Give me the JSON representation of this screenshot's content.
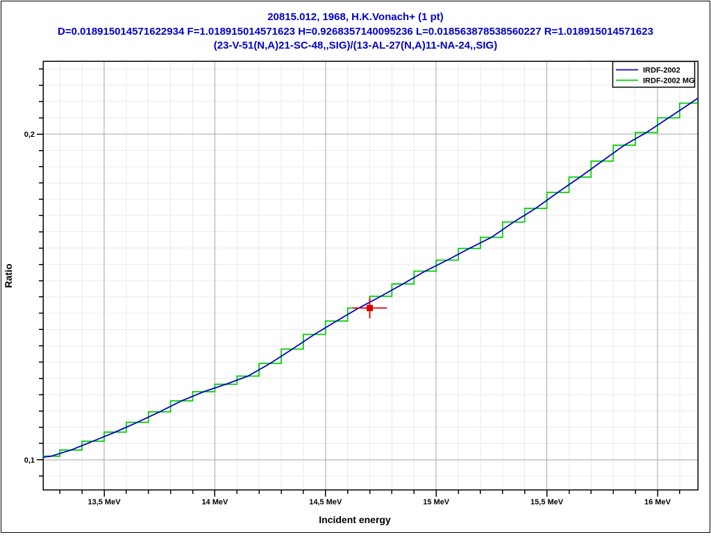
{
  "header": {
    "line1": "20815.012, 1968, H.K.Vonach+ (1 pt)",
    "line2": "D=0.018915014571622934 F=1.018915014571623 H=0.9268357140095236 L=0.018563878538560227 R=1.018915014571623",
    "line3": "(23-V-51(N,A)21-SC-48,,SIG)/(13-AL-27(N,A)11-NA-24,,SIG)",
    "color": "#0000CC"
  },
  "chart_data": {
    "type": "line",
    "xlabel": "Incident energy",
    "ylabel": "Ratio",
    "xlim": [
      13.224,
      16.182
    ],
    "ylim": [
      0.0908,
      0.2224
    ],
    "x_major_ticks": [
      13.5,
      14.0,
      14.5,
      15.0,
      15.5,
      16.0
    ],
    "x_major_tick_labels": [
      "13,5 MeV",
      "14 MeV",
      "14,5 MeV",
      "15 MeV",
      "15,5 MeV",
      "16 MeV"
    ],
    "x_minor_step": 0.1,
    "y_major_ticks": [
      0.1,
      0.2
    ],
    "y_major_tick_labels": [
      "0,1",
      "0,2"
    ],
    "y_minor_step": 0.005,
    "grid": true,
    "grid_minor_color": "#E9E9E9",
    "grid_major_color": "#A6A6A6",
    "axis_color": "#000000",
    "legend_position": "top-right",
    "series": [
      {
        "name": "IRDF-2002",
        "type": "line",
        "color": "#0000CC",
        "points": [
          [
            13.224,
            0.1008
          ],
          [
            13.26,
            0.1011
          ],
          [
            13.35,
            0.103
          ],
          [
            13.45,
            0.1057
          ],
          [
            13.55,
            0.1085
          ],
          [
            13.65,
            0.1115
          ],
          [
            13.75,
            0.1147
          ],
          [
            13.85,
            0.1181
          ],
          [
            13.95,
            0.1209
          ],
          [
            14.05,
            0.1232
          ],
          [
            14.15,
            0.1257
          ],
          [
            14.25,
            0.1296
          ],
          [
            14.35,
            0.134
          ],
          [
            14.45,
            0.1385
          ],
          [
            14.55,
            0.1426
          ],
          [
            14.65,
            0.1466
          ],
          [
            14.75,
            0.1502
          ],
          [
            14.85,
            0.154
          ],
          [
            14.95,
            0.1579
          ],
          [
            15.05,
            0.1613
          ],
          [
            15.15,
            0.1649
          ],
          [
            15.25,
            0.1683
          ],
          [
            15.35,
            0.173
          ],
          [
            15.45,
            0.1772
          ],
          [
            15.55,
            0.1821
          ],
          [
            15.65,
            0.1868
          ],
          [
            15.75,
            0.1917
          ],
          [
            15.85,
            0.1966
          ],
          [
            15.95,
            0.2005
          ],
          [
            16.05,
            0.205
          ],
          [
            16.15,
            0.2095
          ],
          [
            16.182,
            0.211
          ]
        ]
      },
      {
        "name": "IRDF-2002 MG",
        "type": "step",
        "color": "#00D000",
        "bin_edges": [
          13.224,
          13.3,
          13.4,
          13.5,
          13.6,
          13.7,
          13.8,
          13.9,
          14.0,
          14.1,
          14.2,
          14.3,
          14.4,
          14.5,
          14.6,
          14.7,
          14.8,
          14.9,
          15.0,
          15.1,
          15.2,
          15.3,
          15.4,
          15.5,
          15.6,
          15.7,
          15.8,
          15.9,
          16.0,
          16.1,
          16.182
        ],
        "levels": [
          0.1011,
          0.103,
          0.1057,
          0.1085,
          0.1115,
          0.1147,
          0.1181,
          0.1209,
          0.1232,
          0.1257,
          0.1296,
          0.134,
          0.1385,
          0.1426,
          0.1466,
          0.1502,
          0.154,
          0.1579,
          0.1613,
          0.1649,
          0.1683,
          0.173,
          0.1772,
          0.1821,
          0.1868,
          0.1917,
          0.1966,
          0.2005,
          0.205,
          0.2095
        ]
      },
      {
        "type": "errorbar-point",
        "color": "#DD0000",
        "in_legend": false,
        "points": [
          [
            14.7,
            0.1466
          ]
        ],
        "xerr": 0.078,
        "yerr": 0.0032,
        "marker": "square"
      }
    ]
  }
}
